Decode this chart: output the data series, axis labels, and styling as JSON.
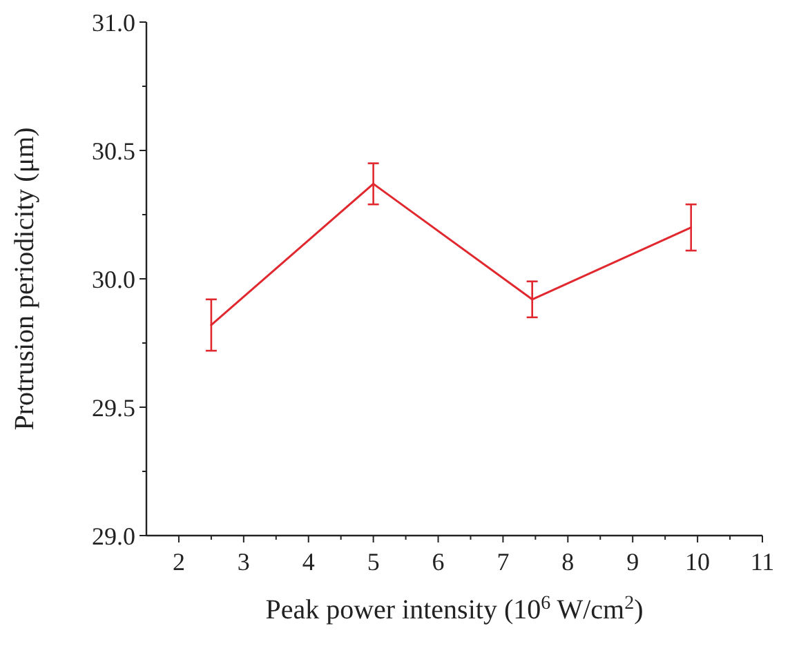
{
  "chart_data": {
    "type": "line",
    "xlabel": "Peak power intensity (10$^{6}$ W/cm$^{2}$)",
    "ylabel": "Protrusion periodicity (μm)",
    "x": [
      2.5,
      5,
      7.45,
      9.9
    ],
    "series": [
      {
        "color": "#e0282e",
        "values": [
          29.82,
          30.37,
          29.92,
          30.2
        ],
        "errors": [
          [
            29.72,
            29.92
          ],
          [
            30.29,
            30.45
          ],
          [
            29.85,
            29.99
          ],
          [
            30.11,
            30.29
          ]
        ]
      }
    ],
    "xlim": [
      1.5,
      11
    ],
    "xticks": [
      2,
      3,
      4,
      5,
      6,
      7,
      8,
      9,
      10,
      11,
      {
        "value": 2.5,
        "label": null
      },
      {
        "value": 3.5,
        "label": null
      },
      {
        "value": 4.5,
        "label": null
      },
      {
        "value": 5.5,
        "label": null
      },
      {
        "value": 6.5,
        "label": null
      },
      {
        "value": 7.5,
        "label": null
      },
      {
        "value": 8.5,
        "label": null
      },
      {
        "value": 9.5,
        "label": null
      },
      {
        "value": 10.5,
        "label": null
      }
    ],
    "ylim": [
      29,
      31
    ],
    "yticks": [
      {
        "value": 29,
        "label": "29.0"
      },
      {
        "value": 29.5,
        "label": "29.5"
      },
      {
        "value": 30,
        "label": "30.0"
      },
      {
        "value": 30.5,
        "label": "30.5"
      },
      {
        "value": 31,
        "label": "31.0"
      },
      {
        "value": 29.25,
        "label": null
      },
      {
        "value": 29.75,
        "label": null
      },
      {
        "value": 30.25,
        "label": null
      },
      {
        "value": 30.75,
        "label": null
      }
    ],
    "marker": "none",
    "line_style": "solid"
  }
}
